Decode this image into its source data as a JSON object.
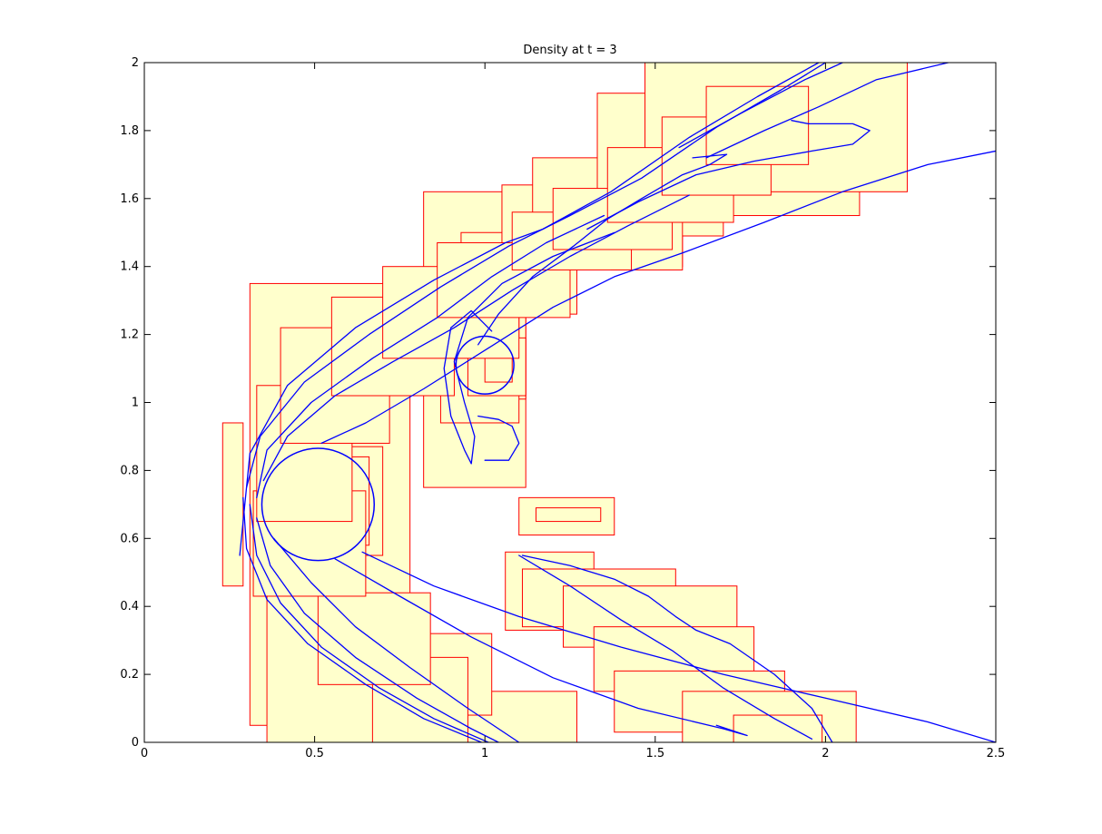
{
  "chart_data": {
    "type": "line",
    "title": "Density at t = 3",
    "xlabel": "",
    "ylabel": "",
    "xlim": [
      0,
      2.5
    ],
    "ylim": [
      0,
      2
    ],
    "xticks": [
      "0",
      "0.5",
      "1",
      "1.5",
      "2",
      "2.5"
    ],
    "yticks": [
      "0",
      "0.2",
      "0.4",
      "0.6",
      "0.8",
      "1",
      "1.2",
      "1.4",
      "1.6",
      "1.8",
      "2"
    ],
    "grid": false,
    "legend": "none",
    "colors": {
      "patch_fill": "#ffffcc",
      "patch_edge": "#ff0000",
      "contour": "#0000ff",
      "axes": "#000000"
    },
    "refinement_patches": [
      [
        0.31,
        0.05,
        0.72,
        1.35
      ],
      [
        0.23,
        0.46,
        0.29,
        0.94
      ],
      [
        0.36,
        0.0,
        0.78,
        1.03
      ],
      [
        0.72,
        0.0,
        1.27,
        0.15
      ],
      [
        0.82,
        0.75,
        1.12,
        1.62
      ],
      [
        0.93,
        1.01,
        1.12,
        1.5
      ],
      [
        1.05,
        1.26,
        1.27,
        1.64
      ],
      [
        1.14,
        1.4,
        1.58,
        1.72
      ],
      [
        1.33,
        1.49,
        1.7,
        1.91
      ],
      [
        1.7,
        1.55,
        2.1,
        2.0
      ],
      [
        1.47,
        1.62,
        2.24,
        2.0
      ],
      [
        1.37,
        1.39,
        1.58,
        1.54
      ],
      [
        1.1,
        0.61,
        1.38,
        0.72
      ],
      [
        1.15,
        0.65,
        1.34,
        0.69
      ],
      [
        1.06,
        0.33,
        1.32,
        0.56
      ],
      [
        1.11,
        0.34,
        1.56,
        0.51
      ],
      [
        1.23,
        0.28,
        1.74,
        0.46
      ],
      [
        1.32,
        0.15,
        1.79,
        0.34
      ],
      [
        1.38,
        0.03,
        1.88,
        0.21
      ],
      [
        1.58,
        0.0,
        2.09,
        0.15
      ],
      [
        1.73,
        0.0,
        1.99,
        0.08
      ],
      [
        0.38,
        0.55,
        0.7,
        0.87
      ],
      [
        0.41,
        0.58,
        0.66,
        0.84
      ],
      [
        0.87,
        0.94,
        1.1,
        1.26
      ],
      [
        0.95,
        1.02,
        1.12,
        1.19
      ],
      [
        1.0,
        1.06,
        1.08,
        1.15
      ],
      [
        0.77,
        0.08,
        1.02,
        0.32
      ],
      [
        0.67,
        0.0,
        0.95,
        0.25
      ],
      [
        0.51,
        0.17,
        0.84,
        0.44
      ],
      [
        0.32,
        0.43,
        0.65,
        0.74
      ],
      [
        0.33,
        0.65,
        0.61,
        1.05
      ],
      [
        0.4,
        0.88,
        0.72,
        1.22
      ],
      [
        0.55,
        1.02,
        0.91,
        1.31
      ],
      [
        0.7,
        1.13,
        1.1,
        1.4
      ],
      [
        0.86,
        1.25,
        1.25,
        1.47
      ],
      [
        1.08,
        1.39,
        1.43,
        1.56
      ],
      [
        1.2,
        1.45,
        1.55,
        1.63
      ],
      [
        1.36,
        1.53,
        1.73,
        1.75
      ],
      [
        1.52,
        1.61,
        1.84,
        1.84
      ],
      [
        1.65,
        1.7,
        1.95,
        1.93
      ]
    ],
    "contours": [
      [
        [
          0.28,
          0.55
        ],
        [
          0.31,
          0.85
        ],
        [
          0.42,
          1.05
        ],
        [
          0.62,
          1.22
        ],
        [
          0.85,
          1.36
        ],
        [
          1.06,
          1.47
        ],
        [
          1.17,
          1.51
        ],
        [
          1.37,
          1.62
        ],
        [
          1.6,
          1.78
        ],
        [
          1.8,
          1.9
        ],
        [
          1.98,
          2.0
        ]
      ],
      [
        [
          0.29,
          0.72
        ],
        [
          0.3,
          0.57
        ],
        [
          0.36,
          0.42
        ],
        [
          0.48,
          0.29
        ],
        [
          0.65,
          0.17
        ],
        [
          0.82,
          0.07
        ],
        [
          0.99,
          0.0
        ]
      ],
      [
        [
          0.3,
          0.75
        ],
        [
          0.34,
          0.9
        ],
        [
          0.47,
          1.06
        ],
        [
          0.66,
          1.2
        ],
        [
          0.87,
          1.34
        ],
        [
          1.07,
          1.46
        ],
        [
          1.25,
          1.55
        ],
        [
          1.46,
          1.66
        ],
        [
          1.68,
          1.81
        ],
        [
          1.87,
          1.92
        ],
        [
          2.0,
          2.0
        ]
      ],
      [
        [
          0.31,
          0.7
        ],
        [
          0.33,
          0.55
        ],
        [
          0.4,
          0.41
        ],
        [
          0.52,
          0.28
        ],
        [
          0.69,
          0.16
        ],
        [
          0.85,
          0.07
        ],
        [
          1.01,
          0.0
        ]
      ],
      [
        [
          0.33,
          0.72
        ],
        [
          0.36,
          0.86
        ],
        [
          0.49,
          1.0
        ],
        [
          0.67,
          1.13
        ],
        [
          0.86,
          1.25
        ],
        [
          1.02,
          1.37
        ],
        [
          1.18,
          1.47
        ],
        [
          1.35,
          1.55
        ]
      ],
      [
        [
          0.33,
          0.66
        ],
        [
          0.37,
          0.52
        ],
        [
          0.47,
          0.38
        ],
        [
          0.62,
          0.25
        ],
        [
          0.8,
          0.13
        ],
        [
          0.96,
          0.04
        ],
        [
          1.04,
          0.0
        ]
      ],
      [
        [
          0.35,
          0.77
        ],
        [
          0.42,
          0.9
        ],
        [
          0.56,
          1.02
        ],
        [
          0.73,
          1.12
        ],
        [
          0.91,
          1.22
        ],
        [
          1.08,
          1.33
        ],
        [
          1.25,
          1.43
        ],
        [
          1.42,
          1.52
        ],
        [
          1.6,
          1.61
        ]
      ],
      [
        [
          0.38,
          0.6
        ],
        [
          0.49,
          0.47
        ],
        [
          0.62,
          0.34
        ],
        [
          0.78,
          0.22
        ],
        [
          0.95,
          0.1
        ],
        [
          1.1,
          0.0
        ]
      ],
      [
        [
          0.52,
          0.88
        ],
        [
          0.65,
          0.94
        ],
        [
          0.82,
          1.04
        ],
        [
          1.01,
          1.16
        ],
        [
          1.2,
          1.28
        ],
        [
          1.38,
          1.37
        ],
        [
          1.58,
          1.44
        ],
        [
          1.82,
          1.53
        ],
        [
          2.05,
          1.62
        ],
        [
          2.3,
          1.7
        ],
        [
          2.5,
          1.74
        ]
      ],
      [
        [
          0.56,
          0.54
        ],
        [
          0.75,
          0.43
        ],
        [
          0.96,
          0.31
        ],
        [
          1.2,
          0.19
        ],
        [
          1.45,
          0.1
        ],
        [
          1.7,
          0.04
        ],
        [
          1.77,
          0.02
        ],
        [
          1.68,
          0.05
        ]
      ],
      [
        [
          0.64,
          0.56
        ],
        [
          0.85,
          0.46
        ],
        [
          1.1,
          0.37
        ],
        [
          1.4,
          0.28
        ],
        [
          1.7,
          0.2
        ],
        [
          2.0,
          0.13
        ],
        [
          2.3,
          0.06
        ],
        [
          2.5,
          0.0
        ]
      ],
      [
        [
          1.02,
          1.21
        ],
        [
          0.96,
          1.27
        ],
        [
          0.9,
          1.22
        ],
        [
          0.88,
          1.1
        ],
        [
          0.9,
          0.96
        ],
        [
          0.94,
          0.86
        ],
        [
          0.96,
          0.82
        ],
        [
          0.97,
          0.9
        ],
        [
          0.94,
          1.0
        ],
        [
          0.91,
          1.12
        ],
        [
          0.95,
          1.25
        ],
        [
          1.05,
          1.35
        ],
        [
          1.2,
          1.43
        ],
        [
          1.38,
          1.5
        ]
      ],
      [
        [
          0.98,
          0.96
        ],
        [
          1.04,
          0.95
        ],
        [
          1.08,
          0.93
        ],
        [
          1.1,
          0.88
        ],
        [
          1.07,
          0.83
        ],
        [
          1.0,
          0.83
        ]
      ],
      [
        [
          1.61,
          1.72
        ],
        [
          1.71,
          1.73
        ],
        [
          1.66,
          1.7
        ],
        [
          1.58,
          1.67
        ],
        [
          1.46,
          1.6
        ],
        [
          1.36,
          1.54
        ],
        [
          1.26,
          1.46
        ],
        [
          1.14,
          1.37
        ],
        [
          1.04,
          1.26
        ],
        [
          0.98,
          1.17
        ]
      ],
      [
        [
          1.57,
          1.75
        ],
        [
          1.75,
          1.85
        ],
        [
          1.94,
          1.95
        ],
        [
          2.05,
          2.0
        ]
      ],
      [
        [
          1.65,
          1.72
        ],
        [
          1.82,
          1.8
        ],
        [
          1.98,
          1.87
        ],
        [
          2.15,
          1.95
        ],
        [
          2.36,
          2.0
        ]
      ],
      [
        [
          1.9,
          1.83
        ],
        [
          1.95,
          1.82
        ],
        [
          2.08,
          1.82
        ],
        [
          2.13,
          1.8
        ],
        [
          2.08,
          1.76
        ],
        [
          1.96,
          1.74
        ],
        [
          1.79,
          1.71
        ],
        [
          1.62,
          1.67
        ],
        [
          1.45,
          1.59
        ],
        [
          1.3,
          1.51
        ]
      ],
      [
        [
          1.1,
          0.55
        ],
        [
          1.25,
          0.46
        ],
        [
          1.4,
          0.36
        ],
        [
          1.55,
          0.27
        ],
        [
          1.7,
          0.16
        ],
        [
          1.85,
          0.07
        ],
        [
          1.96,
          0.01
        ]
      ],
      [
        [
          1.11,
          0.55
        ],
        [
          1.25,
          0.52
        ],
        [
          1.38,
          0.48
        ],
        [
          1.48,
          0.43
        ],
        [
          1.56,
          0.37
        ],
        [
          1.62,
          0.33
        ],
        [
          1.72,
          0.29
        ],
        [
          1.85,
          0.2
        ],
        [
          1.96,
          0.1
        ],
        [
          2.02,
          0.0
        ]
      ]
    ],
    "circles": [
      {
        "cx": 0.51,
        "cy": 0.7,
        "r": 0.165
      },
      {
        "cx": 1.0,
        "cy": 1.11,
        "r": 0.085
      }
    ]
  }
}
